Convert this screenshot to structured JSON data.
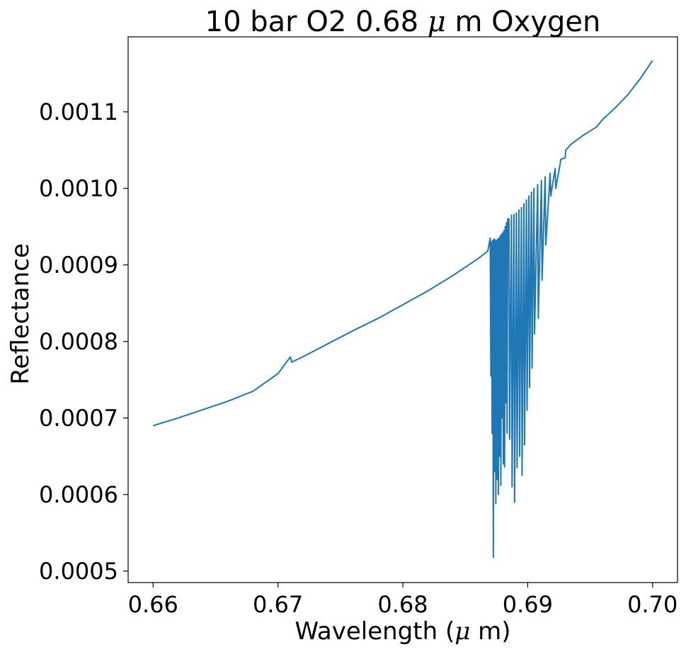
{
  "chart_data": {
    "type": "line",
    "title_text": "10 bar O2 0.68 ",
    "title_mu": "μ",
    "title_suffix": " m Oxygen",
    "xlabel_text": "Wavelength (",
    "xlabel_mu": "μ",
    "xlabel_suffix": " m)",
    "ylabel": "Reflectance",
    "xlim": [
      0.658,
      0.702
    ],
    "ylim": [
      0.000485,
      0.001198
    ],
    "xticks": [
      0.66,
      0.67,
      0.68,
      0.69,
      0.7
    ],
    "xtick_labels": [
      "0.66",
      "0.67",
      "0.68",
      "0.69",
      "0.70"
    ],
    "yticks": [
      0.0005,
      0.0006,
      0.0007,
      0.0008,
      0.0009,
      0.001,
      0.0011
    ],
    "ytick_labels": [
      "0.0005",
      "0.0006",
      "0.0007",
      "0.0008",
      "0.0009",
      "0.0010",
      "0.0011"
    ],
    "grid": false,
    "line_color": "#1f77b4",
    "series": [
      {
        "x": [
          0.66,
          0.662,
          0.664,
          0.666,
          0.668,
          0.67,
          0.671,
          0.6711,
          0.672,
          0.674,
          0.676,
          0.678,
          0.68,
          0.682,
          0.684,
          0.686,
          0.6868,
          0.687,
          0.68705,
          0.6871,
          0.68715,
          0.6872,
          0.68725,
          0.6873,
          0.68735,
          0.6874,
          0.68745,
          0.6875,
          0.68755,
          0.6876,
          0.68765,
          0.6877,
          0.68775,
          0.6878,
          0.68785,
          0.6879,
          0.68795,
          0.688,
          0.68805,
          0.6881,
          0.68815,
          0.6882,
          0.68825,
          0.6883,
          0.68835,
          0.6884,
          0.6885,
          0.68855,
          0.6887,
          0.68875,
          0.6889,
          0.68895,
          0.6891,
          0.68915,
          0.6893,
          0.68935,
          0.6895,
          0.68955,
          0.6897,
          0.68975,
          0.6899,
          0.68995,
          0.6901,
          0.69015,
          0.6903,
          0.69035,
          0.6905,
          0.69055,
          0.6908,
          0.69085,
          0.6911,
          0.69115,
          0.6914,
          0.69145,
          0.6918,
          0.69185,
          0.6922,
          0.69225,
          0.6926,
          0.69265,
          0.693,
          0.69305,
          0.6935,
          0.694,
          0.6945,
          0.695,
          0.6955,
          0.696,
          0.697,
          0.698,
          0.699,
          0.7
        ],
        "y": [
          0.00069,
          0.0007,
          0.000711,
          0.000722,
          0.000735,
          0.000758,
          0.00078,
          0.000773,
          0.00078,
          0.000797,
          0.000814,
          0.00083,
          0.000848,
          0.000866,
          0.000886,
          0.000908,
          0.000918,
          0.000935,
          0.000755,
          0.00093,
          0.00068,
          0.000932,
          0.000518,
          0.000934,
          0.00063,
          0.000933,
          0.000588,
          0.000932,
          0.00062,
          0.000934,
          0.0006,
          0.000935,
          0.00065,
          0.000938,
          0.000612,
          0.00094,
          0.0007,
          0.000942,
          0.00064,
          0.000945,
          0.000636,
          0.00095,
          0.00072,
          0.000955,
          0.00068,
          0.00096,
          0.00096,
          0.000672,
          0.000965,
          0.00061,
          0.000966,
          0.00059,
          0.000968,
          0.000635,
          0.000972,
          0.00065,
          0.000975,
          0.000625,
          0.00098,
          0.000665,
          0.000985,
          0.00071,
          0.00099,
          0.00074,
          0.000995,
          0.000765,
          0.001,
          0.00081,
          0.001005,
          0.00083,
          0.00101,
          0.00088,
          0.001015,
          0.000926,
          0.00102,
          0.00099,
          0.001026,
          0.001,
          0.001032,
          0.001038,
          0.00104,
          0.00105,
          0.001058,
          0.001064,
          0.00107,
          0.001075,
          0.00108,
          0.00109,
          0.001105,
          0.001122,
          0.001143,
          0.001167
        ]
      }
    ]
  }
}
